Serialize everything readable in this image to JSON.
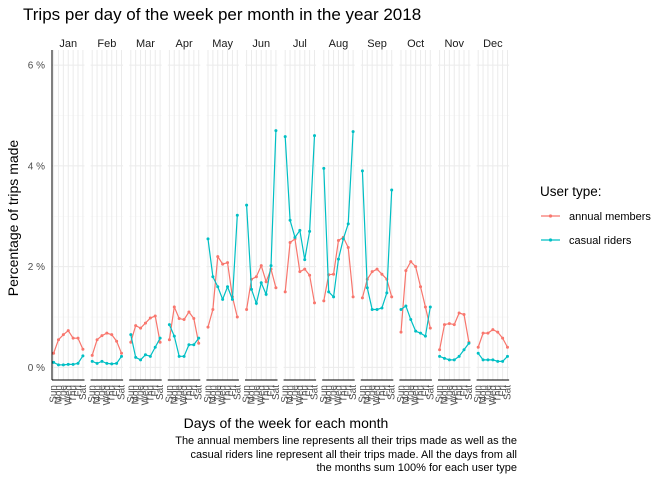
{
  "chart_data": {
    "type": "line",
    "title": "Trips per day of the week per month in the year 2018",
    "xlabel": "Days of the week for each month",
    "ylabel": "Percentage of trips made",
    "months": [
      "Jan",
      "Feb",
      "Mar",
      "Apr",
      "May",
      "Jun",
      "Jul",
      "Aug",
      "Sep",
      "Oct",
      "Nov",
      "Dec"
    ],
    "days": [
      "Sun",
      "Mon",
      "Tue",
      "Wed",
      "Thu",
      "Fri",
      "Sat"
    ],
    "yticks": [
      0,
      2,
      4,
      6
    ],
    "ytick_labels": [
      "0 %",
      "2 %",
      "4 %",
      "6 %"
    ],
    "ylim": [
      -0.25,
      6.3
    ],
    "grid": true,
    "legend": {
      "title": "User type:",
      "placement": "right"
    },
    "series": [
      {
        "name": "annual members",
        "color": "#F8766D",
        "values": [
          [
            0.28,
            0.55,
            0.65,
            0.73,
            0.58,
            0.58,
            0.36
          ],
          [
            0.24,
            0.55,
            0.63,
            0.68,
            0.65,
            0.52,
            0.28
          ],
          [
            0.5,
            0.83,
            0.78,
            0.88,
            0.98,
            1.02,
            0.5
          ],
          [
            0.55,
            1.2,
            0.97,
            0.95,
            1.1,
            0.97,
            0.48
          ],
          [
            0.8,
            1.15,
            2.2,
            2.05,
            2.08,
            1.4,
            1.0
          ],
          [
            1.15,
            1.75,
            1.8,
            2.02,
            1.7,
            1.95,
            1.58
          ],
          [
            1.5,
            2.48,
            2.55,
            1.9,
            1.95,
            1.83,
            1.28
          ],
          [
            1.32,
            1.84,
            1.85,
            2.52,
            2.58,
            2.38,
            1.4
          ],
          [
            1.38,
            1.75,
            1.9,
            1.95,
            1.85,
            1.75,
            1.4
          ],
          [
            0.7,
            1.92,
            2.1,
            2.0,
            1.6,
            1.2,
            0.78
          ],
          [
            0.35,
            0.85,
            0.87,
            0.85,
            1.08,
            1.05,
            0.5
          ],
          [
            0.4,
            0.68,
            0.68,
            0.75,
            0.7,
            0.58,
            0.4
          ]
        ]
      },
      {
        "name": "casual riders",
        "color": "#00BFC4",
        "values": [
          [
            0.1,
            0.05,
            0.05,
            0.06,
            0.06,
            0.08,
            0.23
          ],
          [
            0.12,
            0.08,
            0.12,
            0.08,
            0.07,
            0.08,
            0.22
          ],
          [
            0.65,
            0.2,
            0.15,
            0.25,
            0.22,
            0.4,
            0.58
          ],
          [
            0.85,
            0.62,
            0.22,
            0.22,
            0.45,
            0.45,
            0.58
          ],
          [
            2.55,
            1.8,
            1.6,
            1.35,
            1.6,
            1.35,
            3.02
          ],
          [
            3.22,
            1.55,
            1.27,
            1.68,
            1.45,
            2.02,
            4.7
          ],
          [
            4.58,
            2.92,
            2.58,
            2.72,
            2.14,
            2.7,
            4.6
          ],
          [
            3.95,
            1.5,
            1.4,
            2.15,
            2.55,
            2.85,
            4.68
          ],
          [
            3.9,
            1.58,
            1.15,
            1.15,
            1.18,
            1.48,
            3.52
          ],
          [
            1.15,
            1.22,
            0.95,
            0.72,
            0.68,
            0.62,
            1.2
          ],
          [
            0.22,
            0.18,
            0.15,
            0.15,
            0.22,
            0.35,
            0.48
          ],
          [
            0.28,
            0.15,
            0.15,
            0.15,
            0.12,
            0.12,
            0.22
          ]
        ]
      }
    ],
    "caption": [
      "The annual members line represents all their trips made as well as the",
      "casual riders line represent all their trips made. All the days from all",
      "the months sum 100% for each user type"
    ]
  }
}
